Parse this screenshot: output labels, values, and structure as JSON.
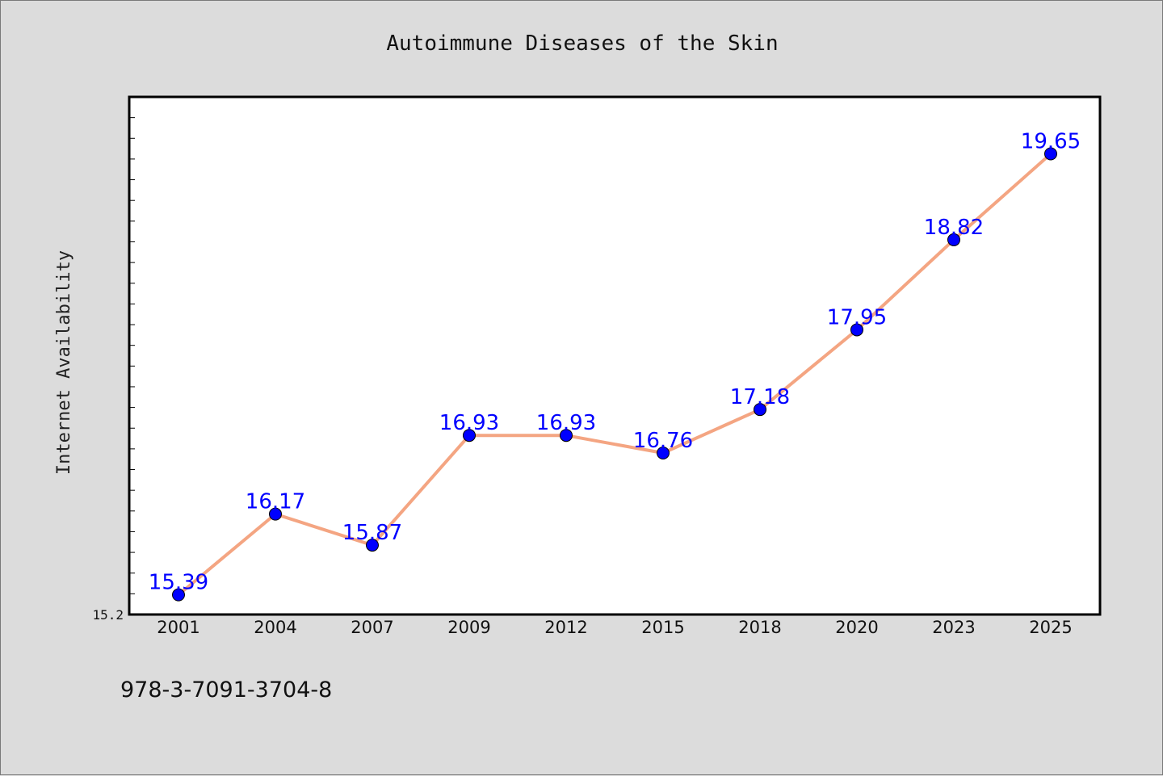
{
  "colors": {
    "background": "#dcdcdc",
    "plot_background": "#ffffff",
    "line": "#f4a582",
    "marker": "#0000ff",
    "data_label": "#0000ff"
  },
  "chart_data": {
    "type": "line",
    "title": "Autoimmune Diseases of the Skin",
    "xlabel": "",
    "ylabel": "Internet Availability",
    "categories": [
      "2001",
      "2004",
      "2007",
      "2009",
      "2012",
      "2015",
      "2018",
      "2020",
      "2023",
      "2025"
    ],
    "series": [
      {
        "values": [
          15.39,
          16.17,
          15.87,
          16.93,
          16.93,
          16.76,
          17.18,
          17.95,
          18.82,
          19.65
        ]
      }
    ],
    "data_labels": [
      "15.39",
      "16.17",
      "15.87",
      "16.93",
      "16.93",
      "16.76",
      "17.18",
      "17.95",
      "18.82",
      "19.65"
    ],
    "y_tick_labels": [
      "15.2"
    ],
    "ylim": [
      15.2,
      20.2
    ],
    "grid": false,
    "marker": "circle"
  },
  "footer": {
    "isbn": "978-3-7091-3704-8"
  }
}
